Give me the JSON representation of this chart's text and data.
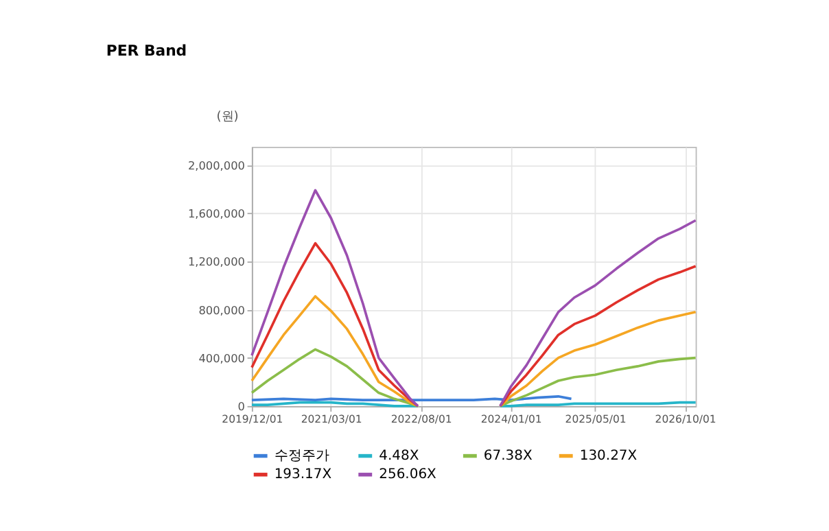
{
  "chart_data": {
    "type": "line",
    "title": "PER Band",
    "ylabel": "(원)",
    "x": [
      "2019-12-01",
      "2020-03-01",
      "2020-06-01",
      "2020-09-01",
      "2020-12-01",
      "2021-03-01",
      "2021-06-01",
      "2021-09-01",
      "2021-12-01",
      "2022-03-01",
      "2022-06-01",
      "2022-07-15",
      "2023-06-01",
      "2023-11-01",
      "2024-01-01",
      "2024-04-01",
      "2024-07-01",
      "2024-10-01",
      "2025-01-01",
      "2025-05-01",
      "2025-09-01",
      "2026-01-01",
      "2026-05-01",
      "2026-09-01",
      "2026-12-01"
    ],
    "series": [
      {
        "name": "수정주가",
        "color": "#3d7fd9",
        "x": [
          "2019-12-01",
          "2020-06-01",
          "2020-12-01",
          "2021-03-01",
          "2021-09-01",
          "2022-06-01",
          "2023-06-01",
          "2023-10-01",
          "2024-01-01",
          "2024-06-01",
          "2024-10-01",
          "2024-12-15"
        ],
        "values": [
          50000,
          60000,
          50000,
          60000,
          50000,
          50000,
          50000,
          60000,
          50000,
          70000,
          80000,
          60000
        ]
      },
      {
        "name": "4.48X",
        "color": "#26b5c9",
        "values": [
          10000,
          10000,
          20000,
          30000,
          30000,
          30000,
          20000,
          20000,
          10000,
          0,
          0,
          0,
          null,
          0,
          0,
          10000,
          10000,
          10000,
          20000,
          20000,
          20000,
          20000,
          20000,
          30000,
          30000
        ]
      },
      {
        "name": "67.38X",
        "color": "#8bbd4a",
        "values": [
          110000,
          210000,
          300000,
          390000,
          470000,
          410000,
          330000,
          220000,
          110000,
          60000,
          20000,
          0,
          null,
          0,
          40000,
          90000,
          150000,
          210000,
          240000,
          260000,
          300000,
          330000,
          370000,
          390000,
          400000
        ]
      },
      {
        "name": "130.27X",
        "color": "#f5a623",
        "values": [
          210000,
          400000,
          590000,
          750000,
          910000,
          790000,
          640000,
          430000,
          200000,
          120000,
          30000,
          0,
          null,
          0,
          80000,
          170000,
          290000,
          400000,
          460000,
          510000,
          580000,
          650000,
          710000,
          750000,
          780000
        ]
      },
      {
        "name": "193.17X",
        "color": "#e0302a",
        "values": [
          320000,
          590000,
          870000,
          1120000,
          1350000,
          1180000,
          940000,
          640000,
          300000,
          170000,
          50000,
          0,
          null,
          0,
          120000,
          260000,
          420000,
          590000,
          680000,
          750000,
          860000,
          960000,
          1050000,
          1110000,
          1160000
        ]
      },
      {
        "name": "256.06X",
        "color": "#9b4fb0",
        "values": [
          420000,
          780000,
          1150000,
          1480000,
          1790000,
          1560000,
          1250000,
          850000,
          400000,
          230000,
          60000,
          0,
          null,
          0,
          160000,
          340000,
          560000,
          780000,
          900000,
          1000000,
          1140000,
          1270000,
          1390000,
          1470000,
          1540000
        ]
      }
    ],
    "xlim": [
      "2019-12-01",
      "2026-12-01"
    ],
    "xticks": [
      {
        "value": "2019-12-01",
        "label": "2019/12/01"
      },
      {
        "value": "2021-03-01",
        "label": "2021/03/01"
      },
      {
        "value": "2022-08-01",
        "label": "2022/08/01"
      },
      {
        "value": "2024-01-01",
        "label": "2024/01/01"
      },
      {
        "value": "2025-05-01",
        "label": "2025/05/01"
      },
      {
        "value": "2026-10-01",
        "label": "2026/10/01"
      }
    ],
    "ylim": [
      0,
      2150000
    ],
    "yticks": [
      {
        "value": 0,
        "label": "0"
      },
      {
        "value": 400000,
        "label": "400,000"
      },
      {
        "value": 800000,
        "label": "800,000"
      },
      {
        "value": 1200000,
        "label": "1,200,000"
      },
      {
        "value": 1600000,
        "label": "1,600,000"
      },
      {
        "value": 2000000,
        "label": "2,000,000"
      }
    ],
    "grid": true,
    "legend": "bottom",
    "marker": "none",
    "line_style": "solid"
  }
}
